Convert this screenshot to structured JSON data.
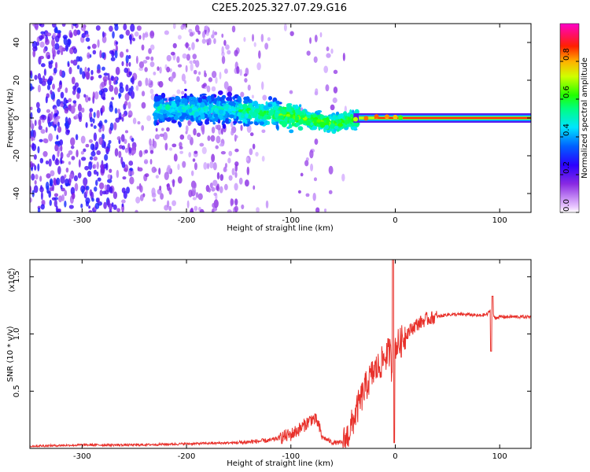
{
  "title": "C2E5.2025.327.07.29.G16",
  "chart_data": [
    {
      "type": "heatmap",
      "name": "spectrogram",
      "xlabel": "Height of straight line (km)",
      "ylabel": "Frequency (Hz)",
      "xlim": [
        -350,
        130
      ],
      "ylim": [
        -50,
        50
      ],
      "xticks": [
        -300,
        -200,
        -100,
        0,
        100
      ],
      "yticks": [
        -40,
        -20,
        0,
        20,
        40
      ],
      "colorbar": {
        "label": "Normalized spectral amplitude",
        "range": [
          0,
          1
        ],
        "ticks": [
          0.0,
          0.2,
          0.4,
          0.6,
          0.8
        ],
        "tick_labels": [
          "0.0",
          "0.2",
          "0.4",
          "0.6",
          "0.8"
        ],
        "colormap": "rainbow (violet-blue-cyan-green-yellow-red-magenta)"
      },
      "description_points": [
        {
          "x_km": -350,
          "band_center_hz": 0,
          "note": "broadband noise, low amplitude"
        },
        {
          "x_km": -220,
          "band_center_hz": 5
        },
        {
          "x_km": -150,
          "band_center_hz": 4
        },
        {
          "x_km": -100,
          "band_center_hz": 1
        },
        {
          "x_km": -60,
          "band_center_hz": -3
        },
        {
          "x_km": -30,
          "band_center_hz": 0
        },
        {
          "x_km": 0,
          "band_center_hz": 1
        },
        {
          "x_km": 130,
          "band_center_hz": 0,
          "note": "narrow strong carrier"
        }
      ]
    },
    {
      "type": "line",
      "name": "snr",
      "xlabel": "Height of straight line (km)",
      "ylabel": "SNR (10 * v/v)",
      "y_multiplier_label": "(x10",
      "y_multiplier_exp": "4",
      "y_multiplier_close": ")",
      "xlim": [
        -350,
        130
      ],
      "ylim": [
        0,
        1.65
      ],
      "xticks": [
        -300,
        -200,
        -100,
        0,
        100
      ],
      "yticks": [
        0.5,
        1.0,
        1.5
      ],
      "ytick_labels": [
        "0.5",
        "1.0",
        "1.5"
      ],
      "series_color": "#e8302a",
      "x": [
        -350,
        -300,
        -250,
        -200,
        -150,
        -120,
        -100,
        -90,
        -80,
        -75,
        -70,
        -60,
        -50,
        -45,
        -40,
        -35,
        -30,
        -25,
        -20,
        -15,
        -10,
        -5,
        -2,
        0,
        5,
        10,
        20,
        30,
        40,
        50,
        60,
        70,
        80,
        88,
        92,
        95,
        100,
        110,
        120,
        130
      ],
      "y": [
        0.02,
        0.03,
        0.03,
        0.04,
        0.05,
        0.07,
        0.12,
        0.18,
        0.26,
        0.24,
        0.1,
        0.05,
        0.05,
        0.12,
        0.25,
        0.38,
        0.5,
        0.6,
        0.68,
        0.72,
        0.8,
        0.85,
        0.55,
        0.9,
        0.92,
        1.0,
        1.08,
        1.13,
        1.15,
        1.17,
        1.17,
        1.17,
        1.16,
        1.17,
        1.22,
        1.14,
        1.15,
        1.15,
        1.15,
        1.15
      ]
    }
  ],
  "colors": {
    "line": "#e8302a",
    "spectrum_line": "#ff1a1a"
  }
}
